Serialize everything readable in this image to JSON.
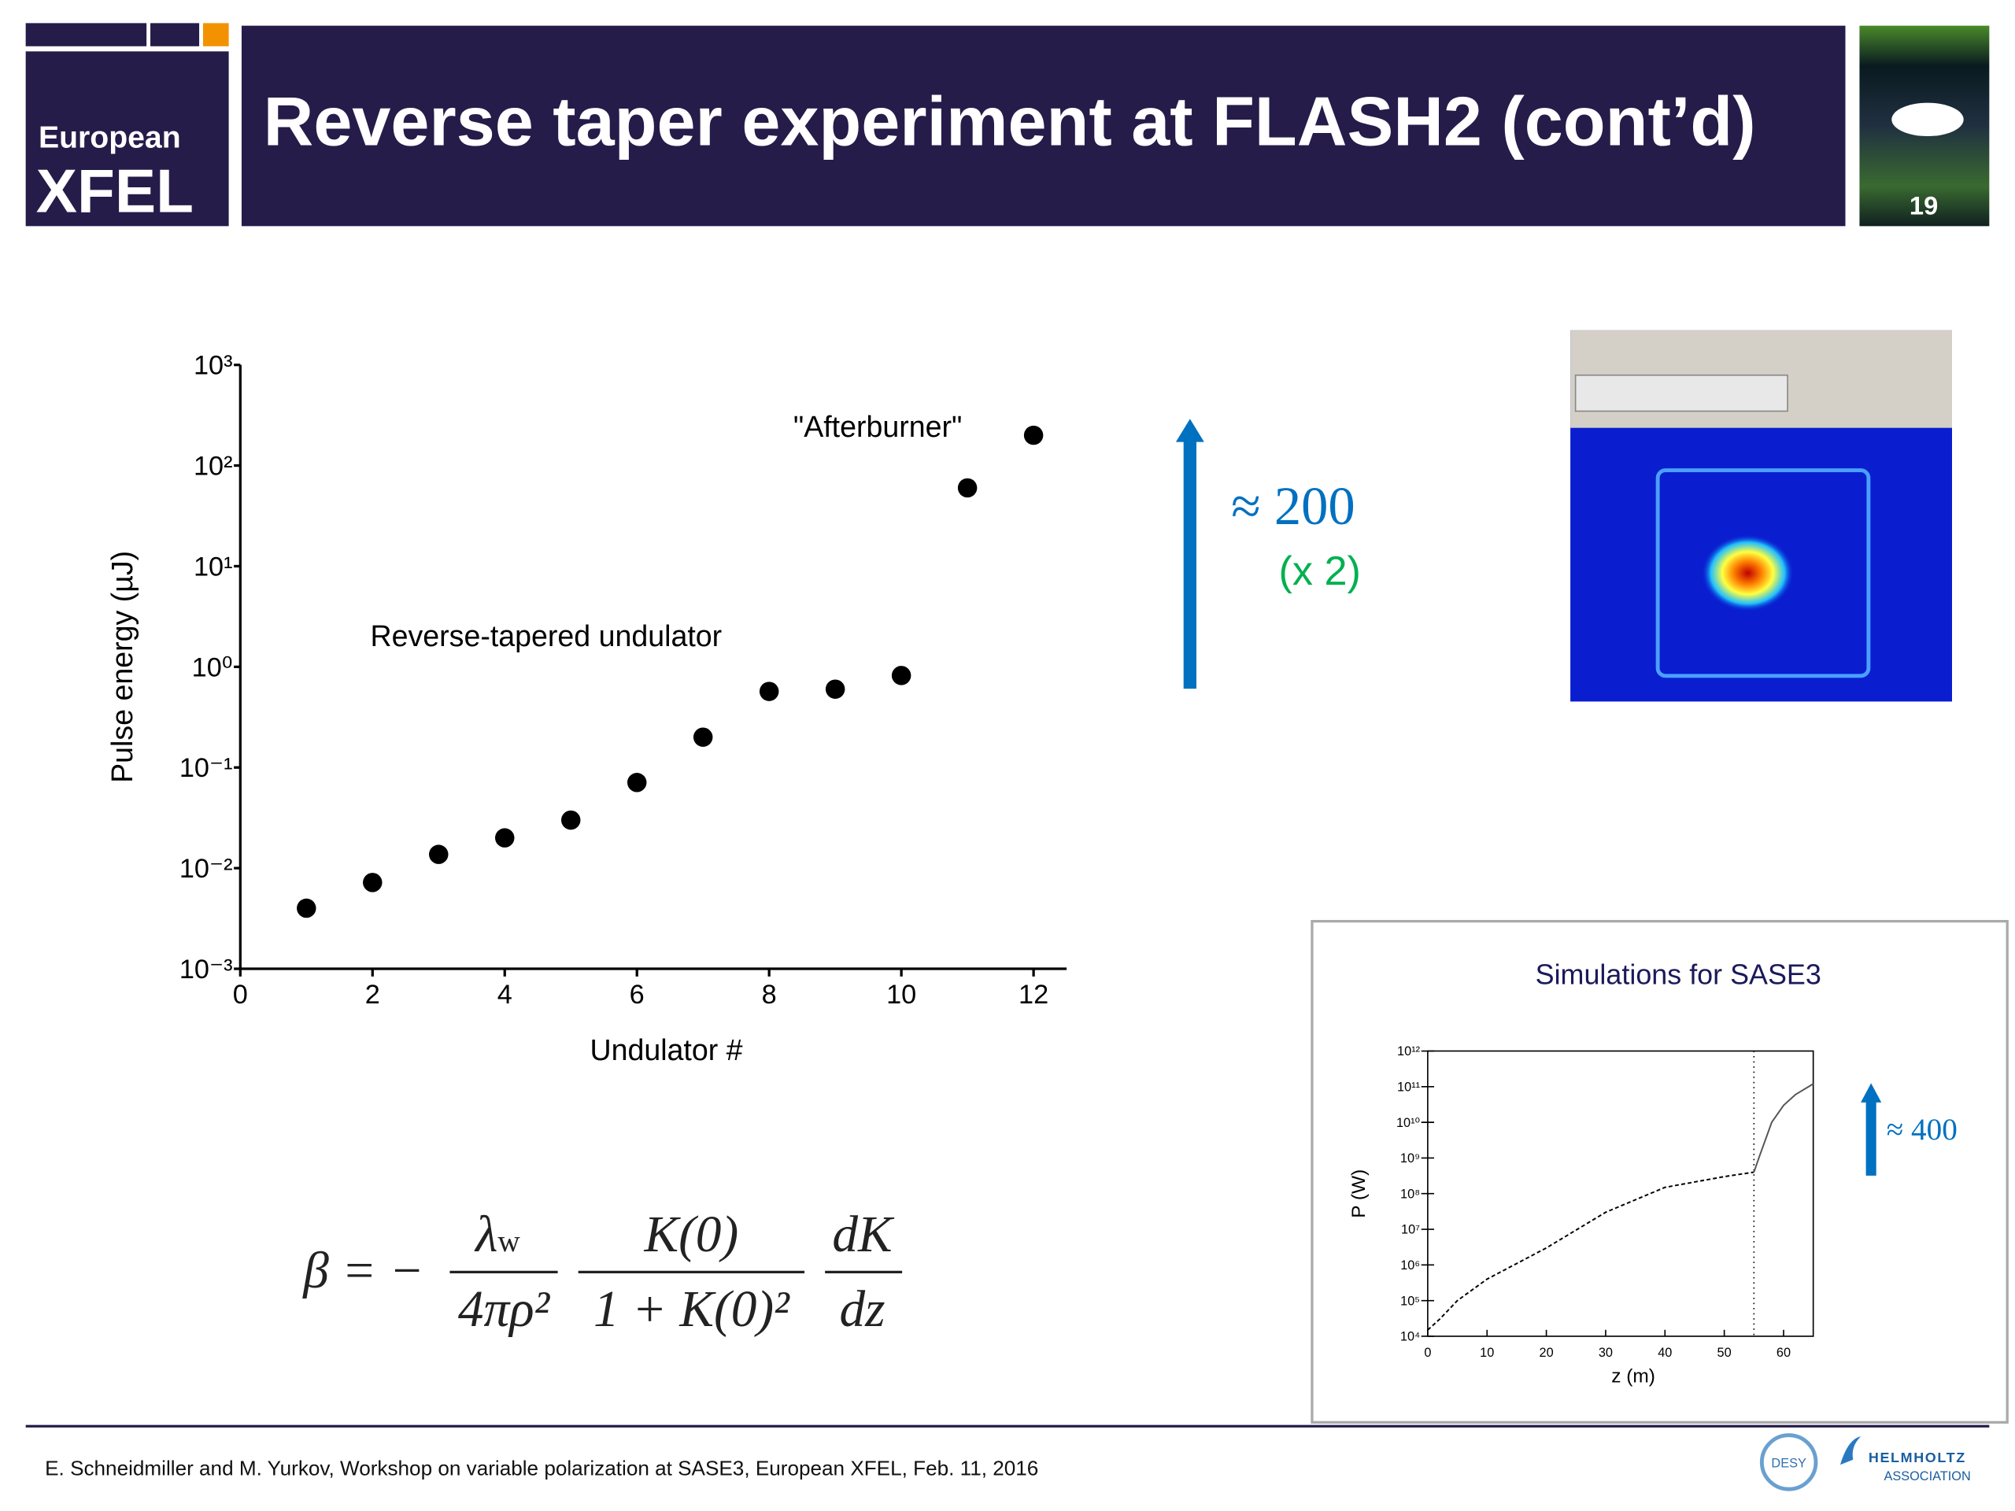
{
  "header": {
    "logo_line1": "European",
    "logo_line2": "XFEL",
    "title": "Reverse taper experiment at FLASH2 (cont’d)",
    "page_number": "19"
  },
  "chart_data": [
    {
      "type": "scatter",
      "xlabel": "Undulator #",
      "ylabel": "Pulse energy (µJ)",
      "annotations": [
        "\"Afterburner\"",
        "Reverse-tapered undulator"
      ],
      "x": [
        1,
        2,
        3,
        4,
        5,
        6,
        7,
        8,
        9,
        10,
        11,
        12
      ],
      "values": [
        0.004,
        0.0072,
        0.0137,
        0.02,
        0.03,
        0.071,
        0.2,
        0.57,
        0.6,
        0.82,
        60,
        200
      ],
      "color": "#000000",
      "xlim": [
        0,
        12.5
      ],
      "xticks": [
        0,
        2,
        4,
        6,
        8,
        10,
        12
      ],
      "ylim": [
        0.001,
        1000
      ],
      "log_y": true,
      "yticks": [
        {
          "value": 0.001,
          "label": "10⁻³"
        },
        {
          "value": 0.01,
          "label": "10⁻²"
        },
        {
          "value": 0.1,
          "label": "10⁻¹"
        },
        {
          "value": 1,
          "label": "10⁰"
        },
        {
          "value": 10,
          "label": "10¹"
        },
        {
          "value": 100,
          "label": "10²"
        },
        {
          "value": 1000,
          "label": "10³"
        }
      ]
    },
    {
      "type": "line",
      "title": "Simulations for SASE3",
      "xlabel": "z (m)",
      "ylabel": "P (W)",
      "x": [
        0,
        2,
        5,
        10,
        20,
        30,
        40,
        50,
        55,
        56,
        58,
        60,
        62,
        65
      ],
      "series": [
        {
          "style": "dashed",
          "color": "#000000",
          "values": [
            15000,
            30000,
            100000,
            400000,
            3000000,
            30000000,
            150000000,
            300000000,
            400000000,
            null,
            null,
            null,
            null,
            null
          ]
        },
        {
          "style": "solid",
          "color": "#555555",
          "values": [
            null,
            null,
            null,
            null,
            null,
            null,
            null,
            null,
            400000000,
            1200000000,
            10000000000,
            30000000000,
            60000000000,
            120000000000
          ]
        }
      ],
      "vline": 55,
      "xlim": [
        0,
        65
      ],
      "xticks": [
        0,
        10,
        20,
        30,
        40,
        50,
        60
      ],
      "ylim": [
        10000,
        1000000000000
      ],
      "log_y": true,
      "yticks": [
        {
          "value": 10000,
          "label": "10⁴"
        },
        {
          "value": 100000,
          "label": "10⁵"
        },
        {
          "value": 1000000,
          "label": "10⁶"
        },
        {
          "value": 10000000,
          "label": "10⁷"
        },
        {
          "value": 100000000,
          "label": "10⁸"
        },
        {
          "value": 1000000000,
          "label": "10⁹"
        },
        {
          "value": 10000000000,
          "label": "10¹⁰"
        },
        {
          "value": 100000000000,
          "label": "10¹¹"
        },
        {
          "value": 1000000000000,
          "label": "10¹²"
        }
      ]
    }
  ],
  "annotations": {
    "gain_main": "≈ 200",
    "gain_factor": "(x 2)",
    "gain_sim": "≈ 400"
  },
  "formula": {
    "lhs": "β = −",
    "f1_num": "λ",
    "f1_num_sub": "w",
    "f1_den": "4πρ²",
    "f2_num": "K(0)",
    "f2_den": "1 + K(0)²",
    "f3_num": "dK",
    "f3_den": "dz"
  },
  "footer": {
    "citation": "E. Schneidmiller and M. Yurkov, Workshop on variable polarization at SASE3, European XFEL, Feb. 11, 2016",
    "desy": "DESY",
    "helmholtz": "HELMHOLTZ",
    "association": "ASSOCIATION"
  }
}
